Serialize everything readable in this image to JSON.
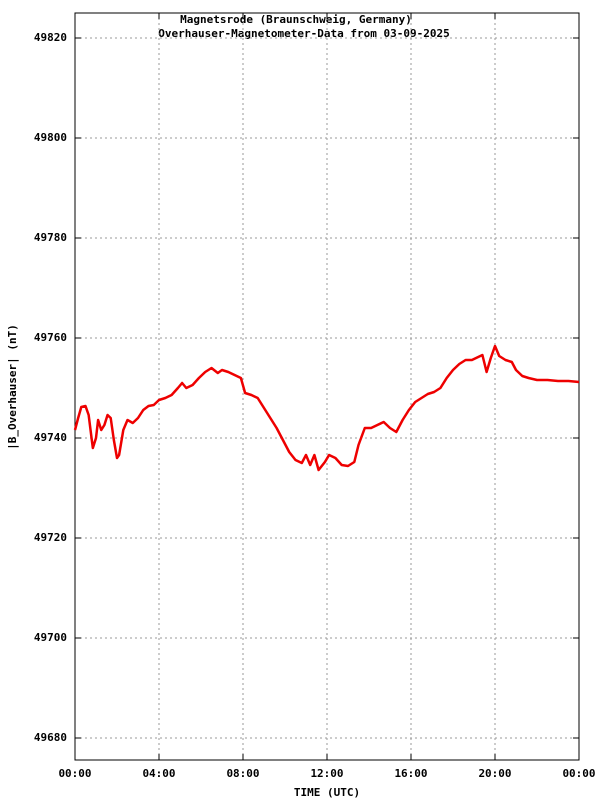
{
  "chart_data": {
    "type": "line",
    "title": "Magnetsrode (Braunschweig, Germany)",
    "subtitle": "Overhauser-Magnetometer-Data from 03-09-2025",
    "x_label": "TIME (UTC)",
    "y_label": "|B_Overhauser| (nT)",
    "x": [
      0,
      0.15,
      0.3,
      0.5,
      0.65,
      0.8,
      0.85,
      1.0,
      1.1,
      1.25,
      1.4,
      1.55,
      1.7,
      1.85,
      2.0,
      2.1,
      2.3,
      2.5,
      2.75,
      3.0,
      3.25,
      3.5,
      3.75,
      4.0,
      4.3,
      4.6,
      4.9,
      5.1,
      5.3,
      5.6,
      5.9,
      6.2,
      6.5,
      6.8,
      7.0,
      7.3,
      7.6,
      7.9,
      8.1,
      8.4,
      8.7,
      9.0,
      9.3,
      9.6,
      9.9,
      10.2,
      10.5,
      10.8,
      11.0,
      11.2,
      11.4,
      11.6,
      11.9,
      12.1,
      12.4,
      12.7,
      13.0,
      13.3,
      13.5,
      13.8,
      14.1,
      14.4,
      14.7,
      15.0,
      15.3,
      15.6,
      15.9,
      16.2,
      16.5,
      16.8,
      17.1,
      17.4,
      17.7,
      18.0,
      18.3,
      18.6,
      18.9,
      19.2,
      19.4,
      19.6,
      19.8,
      20.0,
      20.2,
      20.5,
      20.8,
      21.0,
      21.3,
      21.6,
      22.0,
      22.5,
      23.0,
      23.5,
      24.0
    ],
    "series": [
      {
        "name": "|B_Overhauser|",
        "color": "#ee0000",
        "values": [
          49741.6,
          49744,
          49746.2,
          49746.4,
          49744.6,
          49739.6,
          49738,
          49740,
          49743.6,
          49741.6,
          49742.6,
          49744.6,
          49744,
          49739.6,
          49736,
          49736.6,
          49741.6,
          49743.6,
          49743,
          49744,
          49745.6,
          49746.4,
          49746.6,
          49747.6,
          49748,
          49748.6,
          49750,
          49751,
          49750,
          49750.6,
          49752,
          49753.2,
          49754,
          49753,
          49753.6,
          49753.2,
          49752.6,
          49752,
          49749,
          49748.6,
          49748,
          49746,
          49744,
          49742,
          49739.6,
          49737.2,
          49735.6,
          49735,
          49736.6,
          49734.6,
          49736.6,
          49733.6,
          49735.2,
          49736.6,
          49736,
          49734.6,
          49734.4,
          49735.2,
          49738.6,
          49742,
          49742,
          49742.6,
          49743.2,
          49742,
          49741.2,
          49743.6,
          49745.6,
          49747.2,
          49748,
          49748.8,
          49749.2,
          49750,
          49752,
          49753.6,
          49754.8,
          49755.6,
          49755.6,
          49756.2,
          49756.6,
          49753.2,
          49756,
          49758.4,
          49756.4,
          49755.6,
          49755.2,
          49753.6,
          49752.4,
          49752,
          49751.6,
          49751.6,
          49751.4,
          49751.4,
          49751.2
        ]
      }
    ],
    "xlim": [
      0,
      24
    ],
    "xticks": [
      {
        "value": 0,
        "label": "00:00"
      },
      {
        "value": 4,
        "label": "04:00"
      },
      {
        "value": 8,
        "label": "08:00"
      },
      {
        "value": 12,
        "label": "12:00"
      },
      {
        "value": 16,
        "label": "16:00"
      },
      {
        "value": 20,
        "label": "20:00"
      },
      {
        "value": 24,
        "label": "00:00"
      }
    ],
    "ylim": [
      49675.6,
      49825
    ],
    "yticks": [
      49680,
      49700,
      49720,
      49740,
      49760,
      49780,
      49800,
      49820
    ],
    "grid": true
  }
}
